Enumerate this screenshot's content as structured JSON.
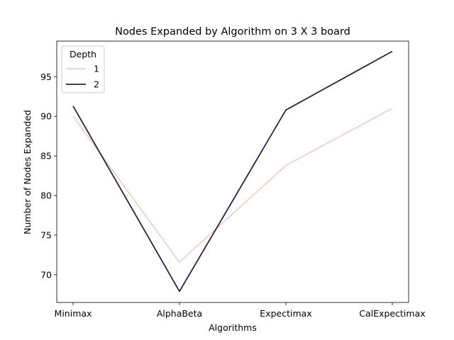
{
  "chart_data": {
    "type": "line",
    "title": "Nodes Expanded by Algorithm on 3 X 3 board",
    "xlabel": "Algorithms",
    "ylabel": "Number of Nodes Expanded",
    "categories": [
      "Minimax",
      "AlphaBeta",
      "Expectimax",
      "CalExpectimax"
    ],
    "ylim": [
      66.5,
      99.5
    ],
    "yticks": [
      70,
      75,
      80,
      85,
      90,
      95
    ],
    "grid": false,
    "legend": {
      "title": "Depth",
      "position": "top-left"
    },
    "series": [
      {
        "name": "1",
        "color": "#f0cbc3",
        "values": [
          90.0,
          71.6,
          83.8,
          91.0
        ]
      },
      {
        "name": "2",
        "color": "#2b2243",
        "values": [
          91.3,
          67.9,
          90.8,
          98.2
        ]
      }
    ]
  }
}
